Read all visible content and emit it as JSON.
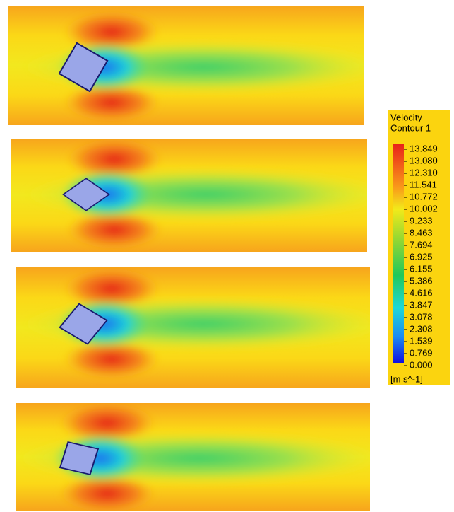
{
  "legend": {
    "title": [
      "Velocity",
      "Contour 1"
    ],
    "labels": [
      "13.849",
      "13.080",
      "12.310",
      "11.541",
      "10.772",
      "10.002",
      "9.233",
      "8.463",
      "7.694",
      "6.925",
      "6.155",
      "5.386",
      "4.616",
      "3.847",
      "3.078",
      "2.308",
      "1.539",
      "0.769",
      "0.000"
    ],
    "unit": "[m s^-1]"
  }
}
